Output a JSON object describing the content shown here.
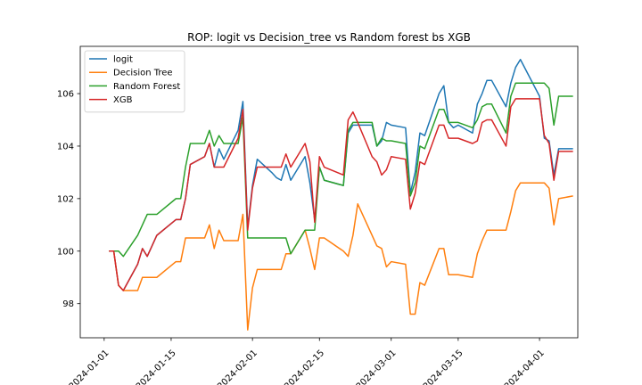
{
  "chart_data": {
    "type": "line",
    "title": "ROP: logit vs Decision_tree vs Random forest bs XGB",
    "xlabel": "",
    "ylabel": "",
    "x_ticks": [
      "2024-01-01",
      "2024-01-15",
      "2024-02-01",
      "2024-02-15",
      "2024-03-01",
      "2024-03-15",
      "2024-04-01"
    ],
    "y_ticks": [
      "98",
      "100",
      "102",
      "104",
      "106"
    ],
    "xlim": [
      "2023-12-27",
      "2024-04-09"
    ],
    "ylim": [
      96.7,
      107.8
    ],
    "grid": false,
    "legend_position": "top-left",
    "x": [
      "2024-01-02",
      "2024-01-03",
      "2024-01-04",
      "2024-01-05",
      "2024-01-08",
      "2024-01-09",
      "2024-01-10",
      "2024-01-11",
      "2024-01-12",
      "2024-01-16",
      "2024-01-17",
      "2024-01-18",
      "2024-01-19",
      "2024-01-22",
      "2024-01-23",
      "2024-01-24",
      "2024-01-25",
      "2024-01-26",
      "2024-01-29",
      "2024-01-30",
      "2024-01-31",
      "2024-02-01",
      "2024-02-02",
      "2024-02-05",
      "2024-02-06",
      "2024-02-07",
      "2024-02-08",
      "2024-02-09",
      "2024-02-12",
      "2024-02-13",
      "2024-02-14",
      "2024-02-15",
      "2024-02-16",
      "2024-02-20",
      "2024-02-21",
      "2024-02-22",
      "2024-02-23",
      "2024-02-26",
      "2024-02-27",
      "2024-02-28",
      "2024-02-29",
      "2024-03-01",
      "2024-03-04",
      "2024-03-05",
      "2024-03-06",
      "2024-03-07",
      "2024-03-08",
      "2024-03-11",
      "2024-03-12",
      "2024-03-13",
      "2024-03-14",
      "2024-03-15",
      "2024-03-18",
      "2024-03-19",
      "2024-03-20",
      "2024-03-21",
      "2024-03-22",
      "2024-03-25",
      "2024-03-26",
      "2024-03-27",
      "2024-03-28",
      "2024-04-01",
      "2024-04-02",
      "2024-04-03",
      "2024-04-04",
      "2024-04-05",
      "2024-04-08"
    ],
    "series": [
      {
        "name": "logit",
        "color": "#1f77b4",
        "values": [
          100.0,
          100.0,
          98.7,
          98.5,
          99.5,
          100.1,
          99.8,
          100.2,
          100.6,
          101.2,
          101.2,
          102.0,
          103.3,
          103.6,
          104.1,
          103.2,
          103.9,
          103.5,
          104.6,
          105.7,
          100.9,
          102.5,
          103.5,
          103.0,
          102.8,
          102.7,
          103.3,
          102.7,
          103.6,
          102.6,
          101.2,
          103.2,
          102.7,
          102.5,
          104.5,
          104.8,
          104.8,
          104.8,
          104.0,
          104.2,
          104.9,
          104.8,
          104.7,
          102.2,
          103.0,
          104.5,
          104.4,
          106.0,
          106.3,
          104.9,
          104.7,
          104.8,
          104.5,
          105.6,
          106.0,
          106.5,
          106.5,
          105.5,
          106.4,
          107.0,
          107.3,
          105.9,
          104.3,
          104.2,
          102.9,
          103.9,
          103.9
        ]
      },
      {
        "name": "Decision Tree",
        "color": "#ff7f0e",
        "values": [
          100.0,
          100.0,
          98.7,
          98.5,
          98.5,
          99.0,
          99.0,
          99.0,
          99.0,
          99.6,
          99.6,
          100.5,
          100.5,
          100.5,
          101.0,
          100.1,
          100.8,
          100.4,
          100.4,
          101.4,
          97.0,
          98.6,
          99.3,
          99.3,
          99.3,
          99.3,
          99.9,
          99.9,
          100.8,
          100.1,
          99.3,
          100.5,
          100.5,
          100.0,
          99.8,
          100.6,
          101.8,
          100.6,
          100.2,
          100.1,
          99.4,
          99.6,
          99.5,
          97.6,
          97.6,
          98.8,
          98.7,
          100.1,
          100.1,
          99.1,
          99.1,
          99.1,
          99.0,
          99.9,
          100.4,
          100.8,
          100.8,
          100.8,
          101.5,
          102.3,
          102.6,
          102.6,
          102.6,
          102.4,
          101.0,
          102.0,
          102.1
        ]
      },
      {
        "name": "Random Forest",
        "color": "#2ca02c",
        "values": [
          100.0,
          100.0,
          100.0,
          99.8,
          100.6,
          101.0,
          101.4,
          101.4,
          101.4,
          102.0,
          102.0,
          103.2,
          104.1,
          104.1,
          104.6,
          104.0,
          104.4,
          104.1,
          104.1,
          105.1,
          100.5,
          100.5,
          100.5,
          100.5,
          100.5,
          100.5,
          100.5,
          99.9,
          100.8,
          100.8,
          100.8,
          103.2,
          102.7,
          102.5,
          104.6,
          104.9,
          104.9,
          104.9,
          104.0,
          104.3,
          104.2,
          104.2,
          104.1,
          102.1,
          102.6,
          104.0,
          103.9,
          105.4,
          105.4,
          104.9,
          104.9,
          104.9,
          104.7,
          105.0,
          105.5,
          105.6,
          105.6,
          104.5,
          105.9,
          106.4,
          106.4,
          106.4,
          106.4,
          106.2,
          104.8,
          105.9,
          105.9
        ]
      },
      {
        "name": "XGB",
        "color": "#d62728",
        "values": [
          100.0,
          100.0,
          98.7,
          98.5,
          99.5,
          100.1,
          99.8,
          100.2,
          100.6,
          101.2,
          101.2,
          102.0,
          103.3,
          103.6,
          104.1,
          103.2,
          103.2,
          103.2,
          104.3,
          105.4,
          100.8,
          102.4,
          103.2,
          103.2,
          103.2,
          103.2,
          103.7,
          103.2,
          104.1,
          103.4,
          101.1,
          103.6,
          103.2,
          102.9,
          105.0,
          105.3,
          104.9,
          103.6,
          103.4,
          102.9,
          103.1,
          103.6,
          103.5,
          101.6,
          102.2,
          103.4,
          103.3,
          104.8,
          104.8,
          104.3,
          104.3,
          104.3,
          104.1,
          104.2,
          104.9,
          105.0,
          105.0,
          104.0,
          105.5,
          105.8,
          105.8,
          105.8,
          104.4,
          104.1,
          102.7,
          103.8,
          103.8
        ]
      }
    ]
  }
}
